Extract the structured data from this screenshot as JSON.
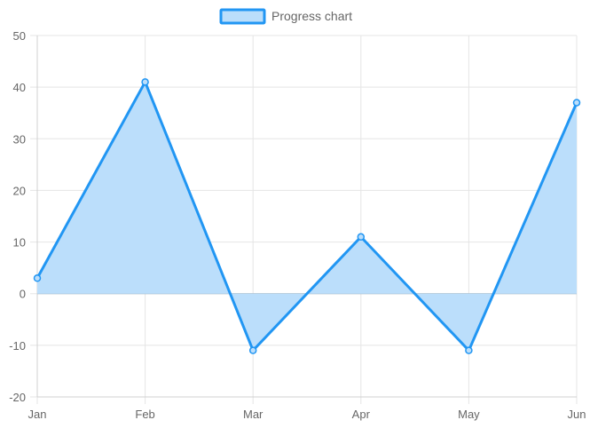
{
  "chart_data": {
    "type": "area",
    "title": "",
    "xlabel": "",
    "ylabel": "",
    "categories": [
      "Jan",
      "Feb",
      "Mar",
      "Apr",
      "May",
      "Jun"
    ],
    "series": [
      {
        "name": "Progress chart",
        "values": [
          3,
          41,
          -11,
          11,
          -11,
          37
        ],
        "line_color": "#2196f3",
        "fill_color": "#bbdefb"
      }
    ],
    "ylim": [
      -20,
      50
    ],
    "yticks": [
      50,
      40,
      30,
      20,
      10,
      0,
      -10,
      -20
    ],
    "grid": true,
    "legend": "top-center"
  }
}
